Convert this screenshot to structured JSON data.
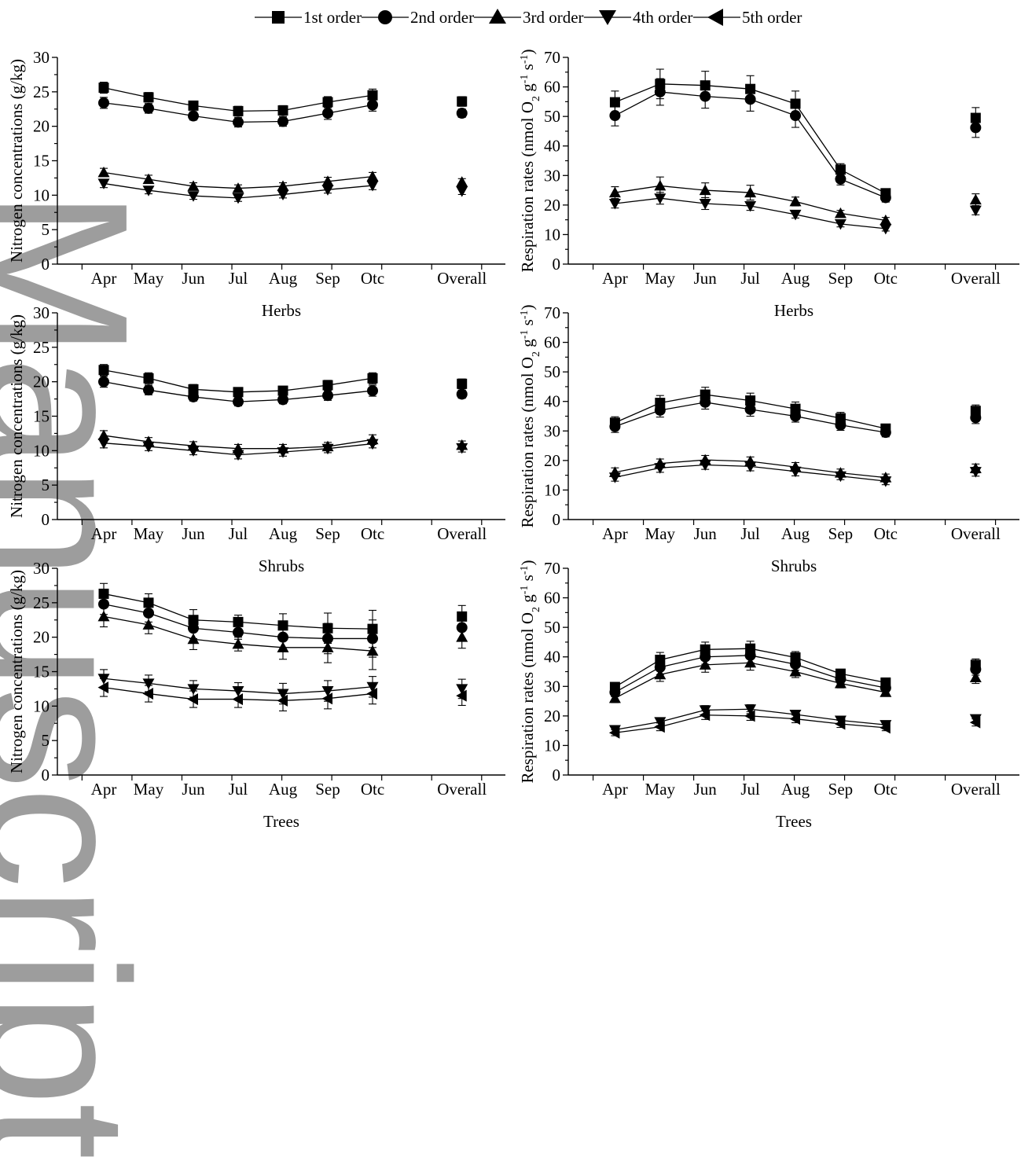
{
  "legend": {
    "entries": [
      {
        "label": "1st order",
        "marker": "square"
      },
      {
        "label": "2nd order",
        "marker": "circle"
      },
      {
        "label": "3rd order",
        "marker": "triangle-up"
      },
      {
        "label": "4th order",
        "marker": "triangle-down"
      },
      {
        "label": "5th order",
        "marker": "triangle-left"
      }
    ]
  },
  "watermark": "Manuscript",
  "chart_data": [
    {
      "type": "line",
      "panel": "nitrogen-top",
      "title": "",
      "xlabel": "",
      "ylabel": "Nitrogen concentrations (g/kg)",
      "categories": [
        "Apr",
        "May",
        "Jun",
        "Jul",
        "Aug",
        "Sep",
        "Otc"
      ],
      "overall_label": "Overall",
      "ylim": [
        0,
        30
      ],
      "yticks": [
        0,
        5,
        10,
        15,
        20,
        25,
        30
      ],
      "series": [
        {
          "name": "1st order",
          "marker": "square",
          "values": [
            25.6,
            24.2,
            23.0,
            22.2,
            22.3,
            23.5,
            24.5
          ],
          "errors": [
            0.8,
            0.7,
            0.6,
            0.7,
            0.7,
            0.8,
            0.9
          ],
          "overall": 23.6,
          "overall_err": 0.7
        },
        {
          "name": "2nd order",
          "marker": "circle",
          "values": [
            23.4,
            22.6,
            21.5,
            20.6,
            20.7,
            21.9,
            23.1
          ],
          "errors": [
            0.8,
            0.7,
            0.6,
            0.7,
            0.7,
            0.9,
            0.9
          ],
          "overall": 21.9,
          "overall_err": 0.6
        },
        {
          "name": "3rd order",
          "marker": "triangle-up",
          "values": [
            13.3,
            12.3,
            11.3,
            11.0,
            11.3,
            12.0,
            12.7
          ],
          "errors": [
            0.6,
            0.6,
            0.5,
            0.5,
            0.5,
            0.6,
            0.6
          ],
          "overall": 11.9,
          "overall_err": 0.5
        },
        {
          "name": "4th order",
          "marker": "triangle-down",
          "values": [
            11.7,
            10.7,
            9.9,
            9.6,
            10.1,
            10.8,
            11.4
          ],
          "errors": [
            0.6,
            0.5,
            0.5,
            0.5,
            0.5,
            0.5,
            0.6
          ],
          "overall": 10.6,
          "overall_err": 0.5
        }
      ]
    },
    {
      "type": "line",
      "panel": "respiration-top",
      "title": "",
      "xlabel": "",
      "ylabel": "Respiration rates (nmol O2 g-1 s-1)",
      "categories": [
        "Apr",
        "May",
        "Jun",
        "Jul",
        "Aug",
        "Sep",
        "Otc"
      ],
      "overall_label": "Overall",
      "ylim": [
        0,
        70
      ],
      "yticks": [
        0,
        10,
        20,
        30,
        40,
        50,
        60,
        70
      ],
      "series": [
        {
          "name": "1st order",
          "marker": "square",
          "values": [
            54.8,
            61.0,
            60.5,
            59.3,
            54.3,
            32.0,
            24.0
          ],
          "errors": [
            3.8,
            5.0,
            4.8,
            4.5,
            4.3,
            2.0,
            1.5
          ],
          "overall": 49.5,
          "overall_err": 3.5
        },
        {
          "name": "2nd order",
          "marker": "circle",
          "values": [
            50.3,
            58.3,
            56.8,
            55.8,
            50.3,
            28.8,
            22.5
          ],
          "errors": [
            3.5,
            4.5,
            4.0,
            4.0,
            4.0,
            2.0,
            1.5
          ],
          "overall": 46.2,
          "overall_err": 3.3
        },
        {
          "name": "3rd order",
          "marker": "triangle-up",
          "values": [
            24.2,
            26.5,
            25.0,
            24.2,
            21.2,
            17.2,
            14.8
          ],
          "errors": [
            2.0,
            3.0,
            2.5,
            2.5,
            1.5,
            1.0,
            1.0
          ],
          "overall": 21.8,
          "overall_err": 2.0
        },
        {
          "name": "4th order",
          "marker": "triangle-down",
          "values": [
            20.5,
            22.3,
            20.5,
            19.7,
            16.8,
            13.6,
            12.0
          ],
          "errors": [
            1.5,
            2.0,
            2.0,
            1.5,
            1.2,
            1.0,
            0.8
          ],
          "overall": 18.2,
          "overall_err": 1.5
        }
      ]
    },
    {
      "type": "line",
      "panel": "nitrogen-middle",
      "title": "Herbs",
      "xlabel": "",
      "ylabel": "Nitrogen concentrations (g/kg)",
      "categories": [
        "Apr",
        "May",
        "Jun",
        "Jul",
        "Aug",
        "Sep",
        "Otc"
      ],
      "overall_label": "Overall",
      "ylim": [
        0,
        30
      ],
      "yticks": [
        0,
        5,
        10,
        15,
        20,
        25,
        30
      ],
      "series": [
        {
          "name": "1st order",
          "marker": "square",
          "values": [
            21.7,
            20.5,
            18.9,
            18.5,
            18.7,
            19.5,
            20.5
          ],
          "errors": [
            0.8,
            0.8,
            0.7,
            0.6,
            0.6,
            0.7,
            0.8
          ],
          "overall": 19.7,
          "overall_err": 0.7
        },
        {
          "name": "2nd order",
          "marker": "circle",
          "values": [
            20.0,
            18.8,
            17.8,
            17.1,
            17.4,
            18.0,
            18.7
          ],
          "errors": [
            0.8,
            0.7,
            0.6,
            0.6,
            0.6,
            0.7,
            0.8
          ],
          "overall": 18.2,
          "overall_err": 0.6
        },
        {
          "name": "3rd order",
          "marker": "triangle-up",
          "values": [
            12.2,
            11.3,
            10.7,
            10.3,
            10.3,
            10.6,
            11.6
          ],
          "errors": [
            0.7,
            0.6,
            0.6,
            0.6,
            0.6,
            0.6,
            0.7
          ],
          "overall": 10.8,
          "overall_err": 0.6
        },
        {
          "name": "4th order",
          "marker": "triangle-down",
          "values": [
            11.1,
            10.6,
            10.0,
            9.4,
            9.8,
            10.3,
            11.0
          ],
          "errors": [
            0.7,
            0.6,
            0.6,
            0.6,
            0.6,
            0.6,
            0.6
          ],
          "overall": 10.4,
          "overall_err": 0.6
        }
      ]
    },
    {
      "type": "line",
      "panel": "respiration-middle",
      "title": "Herbs",
      "xlabel": "",
      "ylabel": "Respiration rates (nmol O2 g-1 s-1)",
      "categories": [
        "Apr",
        "May",
        "Jun",
        "Jul",
        "Aug",
        "Sep",
        "Otc"
      ],
      "overall_label": "Overall",
      "ylim": [
        0,
        70
      ],
      "yticks": [
        0,
        10,
        20,
        30,
        40,
        50,
        60,
        70
      ],
      "series": [
        {
          "name": "1st order",
          "marker": "square",
          "values": [
            32.8,
            39.5,
            42.3,
            40.3,
            37.5,
            34.3,
            30.8
          ],
          "errors": [
            2.0,
            2.5,
            2.5,
            2.5,
            2.3,
            2.0,
            1.5
          ],
          "overall": 36.8,
          "overall_err": 2.0
        },
        {
          "name": "2nd order",
          "marker": "circle",
          "values": [
            31.5,
            37.0,
            39.7,
            37.3,
            35.0,
            32.0,
            29.5
          ],
          "errors": [
            2.0,
            2.3,
            2.3,
            2.3,
            2.0,
            1.8,
            1.5
          ],
          "overall": 34.5,
          "overall_err": 2.0
        },
        {
          "name": "3rd order",
          "marker": "triangle-up",
          "values": [
            16.0,
            19.0,
            20.2,
            19.7,
            17.8,
            15.8,
            14.2
          ],
          "errors": [
            1.5,
            1.5,
            1.5,
            1.5,
            1.5,
            1.3,
            1.2
          ],
          "overall": 17.3,
          "overall_err": 1.5
        },
        {
          "name": "4th order",
          "marker": "triangle-down",
          "values": [
            14.3,
            17.5,
            18.5,
            18.0,
            16.3,
            14.7,
            13.0
          ],
          "errors": [
            1.3,
            1.5,
            1.5,
            1.5,
            1.5,
            1.2,
            1.2
          ],
          "overall": 16.2,
          "overall_err": 1.5
        }
      ]
    },
    {
      "type": "line",
      "panel": "nitrogen-bottom",
      "title": "Shrubs",
      "xlabel": "Trees",
      "ylabel": "Nitrogen concentrations (g/kg)",
      "categories": [
        "Apr",
        "May",
        "Jun",
        "Jul",
        "Aug",
        "Sep",
        "Otc"
      ],
      "overall_label": "Overall",
      "ylim": [
        0,
        30
      ],
      "yticks": [
        0,
        5,
        10,
        15,
        20,
        25,
        30
      ],
      "series": [
        {
          "name": "1st order",
          "marker": "square",
          "values": [
            26.3,
            25.0,
            22.5,
            22.2,
            21.7,
            21.3,
            21.2
          ],
          "errors": [
            1.5,
            1.3,
            1.5,
            1.0,
            1.7,
            2.2,
            2.7
          ],
          "overall": 23.0,
          "overall_err": 1.6
        },
        {
          "name": "2nd order",
          "marker": "circle",
          "values": [
            24.8,
            23.5,
            21.3,
            20.7,
            20.0,
            19.8,
            19.8
          ],
          "errors": [
            1.5,
            1.3,
            1.5,
            1.0,
            1.7,
            2.2,
            2.7
          ],
          "overall": 21.4,
          "overall_err": 1.6
        },
        {
          "name": "3rd order",
          "marker": "triangle-up",
          "values": [
            23.0,
            21.8,
            19.7,
            19.0,
            18.5,
            18.5,
            18.0
          ],
          "errors": [
            1.5,
            1.3,
            1.5,
            1.0,
            1.7,
            2.2,
            2.7
          ],
          "overall": 20.0,
          "overall_err": 1.6
        },
        {
          "name": "4th order",
          "marker": "triangle-down",
          "values": [
            14.0,
            13.3,
            12.5,
            12.2,
            11.8,
            12.2,
            12.8
          ],
          "errors": [
            1.3,
            1.2,
            1.2,
            1.2,
            1.5,
            1.5,
            1.5
          ],
          "overall": 12.5,
          "overall_err": 1.4
        },
        {
          "name": "5th order",
          "marker": "triangle-left",
          "values": [
            12.7,
            11.8,
            11.0,
            11.0,
            10.8,
            11.1,
            11.8
          ],
          "errors": [
            1.3,
            1.2,
            1.2,
            1.2,
            1.5,
            1.5,
            1.5
          ],
          "overall": 11.5,
          "overall_err": 1.4
        }
      ]
    },
    {
      "type": "line",
      "panel": "respiration-bottom",
      "title": "Shrubs",
      "xlabel": "Trees",
      "ylabel": "Respiration rates (nmol O2 g-1 s-1)",
      "categories": [
        "Apr",
        "May",
        "Jun",
        "Jul",
        "Aug",
        "Sep",
        "Otc"
      ],
      "overall_label": "Overall",
      "ylim": [
        0,
        70
      ],
      "yticks": [
        0,
        10,
        20,
        30,
        40,
        50,
        60,
        70
      ],
      "series": [
        {
          "name": "1st order",
          "marker": "square",
          "values": [
            29.8,
            39.0,
            42.5,
            42.8,
            39.8,
            34.3,
            31.3
          ],
          "errors": [
            1.5,
            2.5,
            2.5,
            2.5,
            2.0,
            1.5,
            1.3
          ],
          "overall": 37.3,
          "overall_err": 2.0
        },
        {
          "name": "2nd order",
          "marker": "circle",
          "values": [
            28.0,
            36.5,
            40.0,
            40.5,
            37.5,
            32.5,
            29.5
          ],
          "errors": [
            1.5,
            2.5,
            2.5,
            2.5,
            2.0,
            1.5,
            1.3
          ],
          "overall": 35.8,
          "overall_err": 2.0
        },
        {
          "name": "3rd order",
          "marker": "triangle-up",
          "values": [
            26.0,
            34.0,
            37.3,
            38.0,
            35.0,
            31.0,
            28.0
          ],
          "errors": [
            1.5,
            2.3,
            2.5,
            2.5,
            2.0,
            1.5,
            1.3
          ],
          "overall": 33.0,
          "overall_err": 2.0
        },
        {
          "name": "4th order",
          "marker": "triangle-down",
          "values": [
            15.3,
            18.0,
            22.0,
            22.3,
            20.5,
            18.5,
            17.0
          ],
          "errors": [
            1.0,
            1.3,
            1.5,
            1.5,
            1.3,
            1.2,
            1.0
          ],
          "overall": 19.0,
          "overall_err": 1.2
        },
        {
          "name": "5th order",
          "marker": "triangle-left",
          "values": [
            14.3,
            16.3,
            20.3,
            20.0,
            19.0,
            17.3,
            16.0
          ],
          "errors": [
            1.0,
            1.3,
            1.5,
            1.5,
            1.3,
            1.2,
            1.0
          ],
          "overall": 17.8,
          "overall_err": 1.2
        }
      ]
    }
  ]
}
